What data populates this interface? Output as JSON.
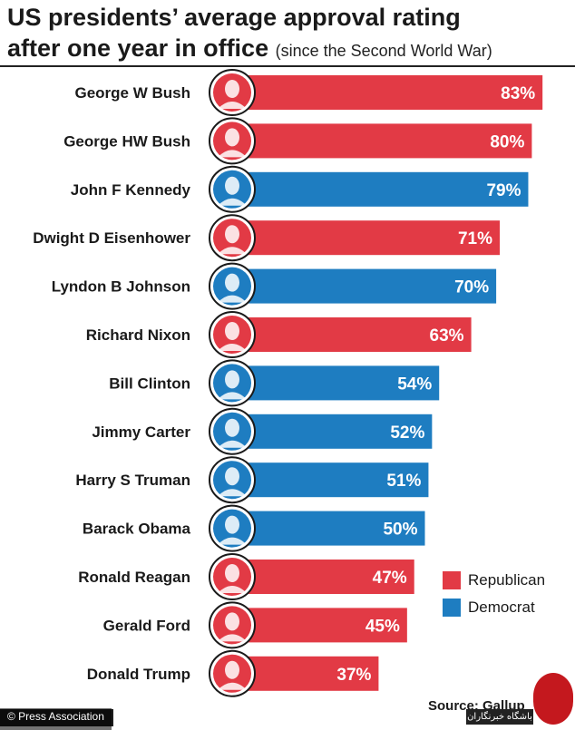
{
  "title": {
    "main_line1": "US presidents’ average approval rating",
    "main_line2": "after one year in office",
    "subtitle": "(since the Second World War)"
  },
  "colors": {
    "Republican": "#e23a45",
    "Democrat": "#1e7dc1",
    "border": "#1a1a1a"
  },
  "legend": {
    "republican": "Republican",
    "democrat": "Democrat"
  },
  "source": "Source: Gallup",
  "credit": "© Press Association",
  "watermark": "باشگاه خبرنگاران",
  "chart_data": {
    "type": "bar",
    "orientation": "horizontal",
    "title": "US presidents’ average approval rating after one year in office",
    "subtitle": "(since the Second World War)",
    "unit": "%",
    "xlim": [
      0,
      100
    ],
    "categories": [
      "George W Bush",
      "George HW Bush",
      "John F Kennedy",
      "Dwight D Eisenhower",
      "Lyndon B Johnson",
      "Richard Nixon",
      "Bill Clinton",
      "Jimmy Carter",
      "Harry S Truman",
      "Barack Obama",
      "Ronald Reagan",
      "Gerald Ford",
      "Donald Trump"
    ],
    "values": [
      83,
      80,
      79,
      71,
      70,
      63,
      54,
      52,
      51,
      50,
      47,
      45,
      37
    ],
    "labels": [
      "83%",
      "80%",
      "79%",
      "71%",
      "70%",
      "63%",
      "54%",
      "52%",
      "51%",
      "50%",
      "47%",
      "45%",
      "37%"
    ],
    "party": [
      "Republican",
      "Republican",
      "Democrat",
      "Republican",
      "Democrat",
      "Republican",
      "Democrat",
      "Democrat",
      "Democrat",
      "Democrat",
      "Republican",
      "Republican",
      "Republican"
    ],
    "legend_position": "right",
    "grid": false
  }
}
